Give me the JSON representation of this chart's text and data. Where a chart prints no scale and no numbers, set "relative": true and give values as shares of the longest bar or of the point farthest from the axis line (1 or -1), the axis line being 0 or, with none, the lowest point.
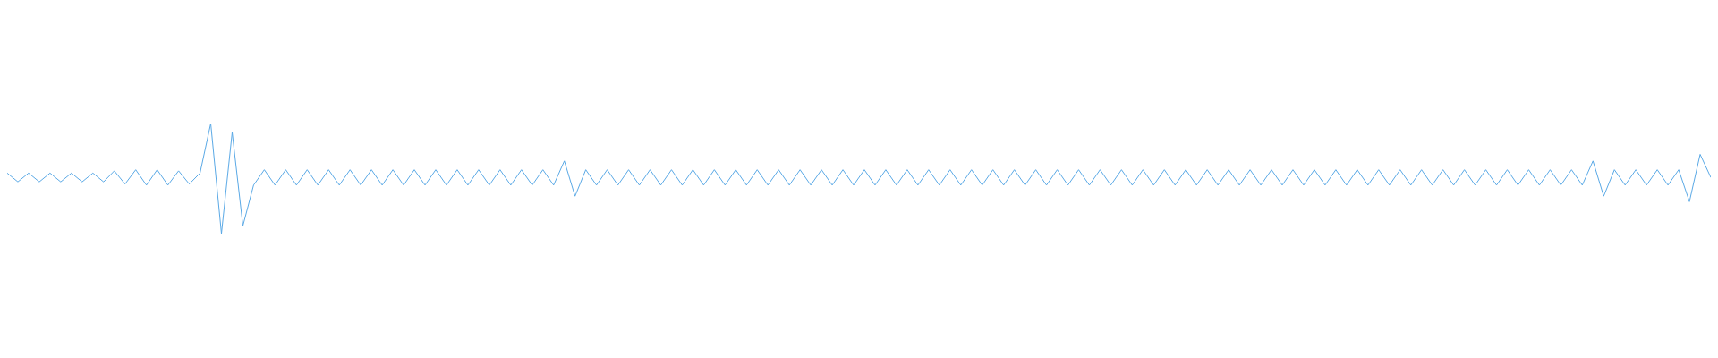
{
  "chart_data": {
    "type": "line",
    "relative": true,
    "categories": [
      null,
      null,
      null,
      null,
      null,
      null,
      null,
      null,
      null,
      null,
      null,
      null,
      null,
      null,
      null,
      null,
      null,
      null,
      null,
      null,
      null,
      null,
      null,
      null,
      null,
      null,
      null,
      null,
      null,
      null,
      null,
      null,
      null,
      null,
      null,
      null,
      null,
      null,
      null,
      null,
      null,
      null,
      null,
      null,
      null,
      null,
      null,
      null,
      null,
      null,
      null,
      null,
      null,
      null,
      null,
      null,
      null,
      null,
      null,
      null,
      null,
      null,
      null,
      null,
      null,
      null,
      null,
      null,
      null,
      null,
      null,
      null,
      null,
      null,
      null,
      null,
      null,
      null,
      null,
      null,
      null,
      null,
      null,
      null,
      null,
      null,
      null,
      null,
      null,
      null,
      null,
      null,
      null,
      null,
      null,
      null,
      null,
      null,
      null,
      null,
      null,
      null,
      null,
      null,
      null,
      null,
      null,
      null,
      null,
      null,
      null,
      null,
      null,
      null,
      null,
      null,
      null,
      null,
      null,
      null,
      null,
      null,
      null,
      null,
      null,
      null,
      null,
      null,
      null,
      null,
      null,
      null,
      null,
      null,
      null,
      null,
      null,
      null,
      null,
      null,
      null,
      null,
      null,
      null,
      null,
      null,
      null,
      null,
      null,
      null,
      null,
      null,
      null,
      null,
      null,
      null,
      null,
      null,
      null,
      null
    ],
    "series": [
      {
        "color": "#5aa9e6",
        "values": [
          0.55,
          0.47,
          0.55,
          0.47,
          0.55,
          0.47,
          0.55,
          0.47,
          0.55,
          0.47,
          0.57,
          0.45,
          0.58,
          0.44,
          0.58,
          0.44,
          0.57,
          0.45,
          0.55,
          1.0,
          0.0,
          0.92,
          0.07,
          0.44,
          0.58,
          0.44,
          0.58,
          0.44,
          0.58,
          0.44,
          0.58,
          0.44,
          0.58,
          0.44,
          0.58,
          0.44,
          0.58,
          0.44,
          0.58,
          0.44,
          0.58,
          0.44,
          0.58,
          0.44,
          0.58,
          0.44,
          0.58,
          0.44,
          0.58,
          0.44,
          0.58,
          0.44,
          0.66,
          0.34,
          0.58,
          0.44,
          0.58,
          0.44,
          0.58,
          0.44,
          0.58,
          0.44,
          0.58,
          0.44,
          0.58,
          0.44,
          0.58,
          0.44,
          0.58,
          0.44,
          0.58,
          0.44,
          0.58,
          0.44,
          0.58,
          0.44,
          0.58,
          0.44,
          0.58,
          0.44,
          0.58,
          0.44,
          0.58,
          0.44,
          0.58,
          0.44,
          0.58,
          0.44,
          0.58,
          0.44,
          0.58,
          0.44,
          0.58,
          0.44,
          0.58,
          0.44,
          0.58,
          0.44,
          0.58,
          0.44,
          0.58,
          0.44,
          0.58,
          0.44,
          0.58,
          0.44,
          0.58,
          0.44,
          0.58,
          0.44,
          0.58,
          0.44,
          0.58,
          0.44,
          0.58,
          0.44,
          0.58,
          0.44,
          0.58,
          0.44,
          0.58,
          0.44,
          0.58,
          0.44,
          0.58,
          0.44,
          0.58,
          0.44,
          0.58,
          0.44,
          0.58,
          0.44,
          0.58,
          0.44,
          0.58,
          0.44,
          0.58,
          0.44,
          0.58,
          0.44,
          0.58,
          0.44,
          0.58,
          0.44,
          0.58,
          0.44,
          0.58,
          0.44,
          0.66,
          0.34,
          0.58,
          0.44,
          0.58,
          0.44,
          0.58,
          0.44,
          0.58,
          0.29,
          0.72,
          0.51
        ]
      }
    ]
  }
}
